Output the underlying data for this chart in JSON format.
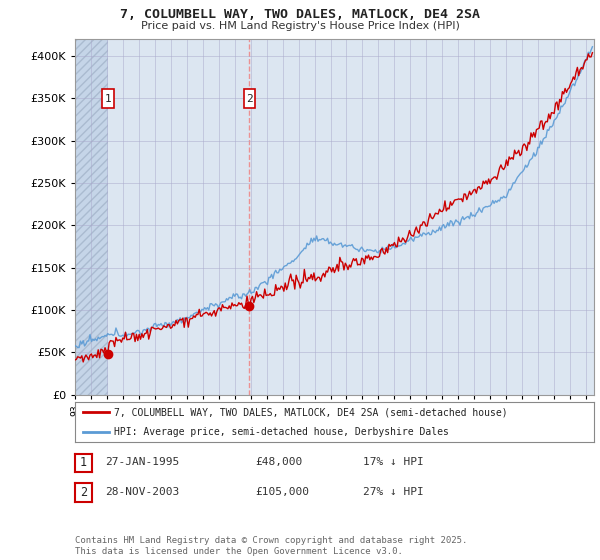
{
  "title_line1": "7, COLUMBELL WAY, TWO DALES, MATLOCK, DE4 2SA",
  "title_line2": "Price paid vs. HM Land Registry's House Price Index (HPI)",
  "ylim": [
    0,
    420000
  ],
  "yticks": [
    0,
    50000,
    100000,
    150000,
    200000,
    250000,
    300000,
    350000,
    400000
  ],
  "hpi_color": "#5b9bd5",
  "price_color": "#cc0000",
  "background_color": "#ffffff",
  "plot_bg_color": "#dce6f1",
  "hatch_bg_color": "#c5d5e8",
  "sale1_date": 1995.07,
  "sale1_price": 48000,
  "sale2_date": 2003.91,
  "sale2_price": 105000,
  "legend_line1": "7, COLUMBELL WAY, TWO DALES, MATLOCK, DE4 2SA (semi-detached house)",
  "legend_line2": "HPI: Average price, semi-detached house, Derbyshire Dales",
  "table_row1": [
    "1",
    "27-JAN-1995",
    "£48,000",
    "17% ↓ HPI"
  ],
  "table_row2": [
    "2",
    "28-NOV-2003",
    "£105,000",
    "27% ↓ HPI"
  ],
  "footnote": "Contains HM Land Registry data © Crown copyright and database right 2025.\nThis data is licensed under the Open Government Licence v3.0.",
  "xlim_start": 1993.0,
  "xlim_end": 2025.5
}
